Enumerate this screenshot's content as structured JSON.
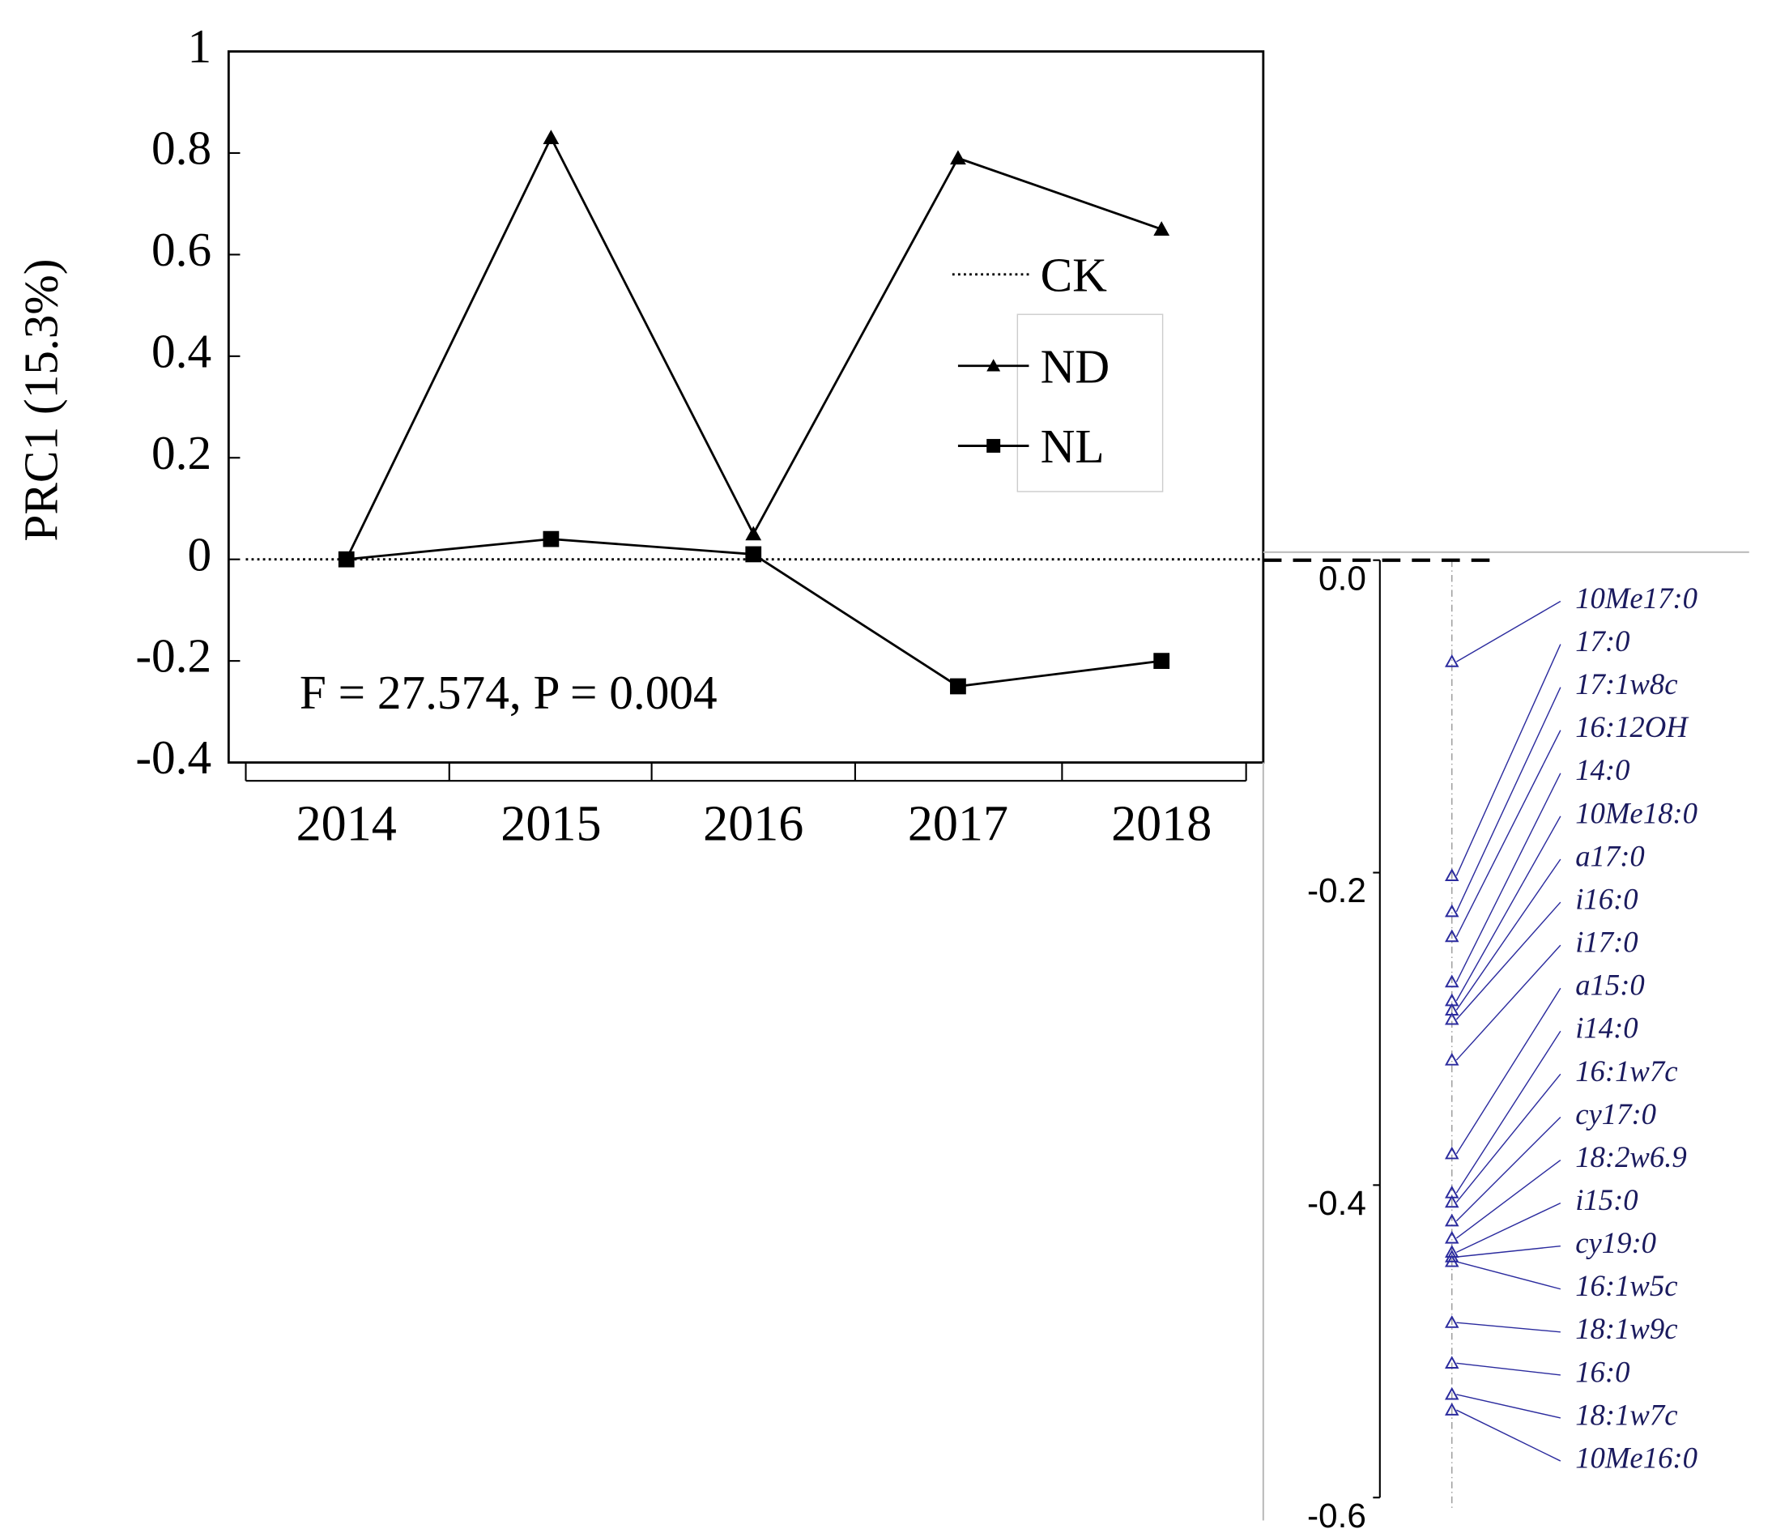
{
  "chart_data": [
    {
      "type": "line",
      "y_label": "PRC1 (15.3%)",
      "categories": [
        "2014",
        "2015",
        "2016",
        "2017",
        "2018"
      ],
      "series": [
        {
          "name": "ND",
          "color": "#000000",
          "marker": "triangle",
          "values": [
            0,
            0.83,
            0.05,
            0.79,
            0.65
          ]
        },
        {
          "name": "NL",
          "color": "#000000",
          "marker": "square",
          "values": [
            0,
            0.04,
            0.01,
            -0.25,
            -0.2
          ]
        }
      ],
      "reference_line": {
        "name": "CK",
        "value": 0,
        "style": "dotted"
      },
      "annotation": "F = 27.574, P = 0.004",
      "ylim": [
        -0.4,
        1
      ],
      "yticks": [
        -0.4,
        -0.2,
        0,
        0.2,
        0.4,
        0.6,
        0.8,
        1
      ]
    },
    {
      "type": "scatter",
      "color": "#2b2b9e",
      "marker": "open-triangle",
      "categories": [
        "10Me17:0",
        "17:0",
        "17:1w8c",
        "16:12OH",
        "14:0",
        "10Me18:0",
        "a17:0",
        "i16:0",
        "i17:0",
        "a15:0",
        "i14:0",
        "16:1w7c",
        "cy17:0",
        "18:2w6.9",
        "i15:0",
        "cy19:0",
        "16:1w5c",
        "18:1w9c",
        "16:0",
        "18:1w7c",
        "10Me16:0"
      ],
      "values": [
        -0.065,
        -0.202,
        -0.225,
        -0.241,
        -0.27,
        -0.282,
        -0.288,
        -0.294,
        -0.32,
        -0.38,
        -0.405,
        -0.411,
        -0.423,
        -0.434,
        -0.443,
        -0.446,
        -0.449,
        -0.488,
        -0.514,
        -0.534,
        -0.544
      ],
      "ylim": [
        0,
        -0.6
      ],
      "yticks": [
        {
          "value": 0,
          "label": "0.0"
        },
        -0.2,
        -0.4,
        -0.6
      ]
    }
  ]
}
